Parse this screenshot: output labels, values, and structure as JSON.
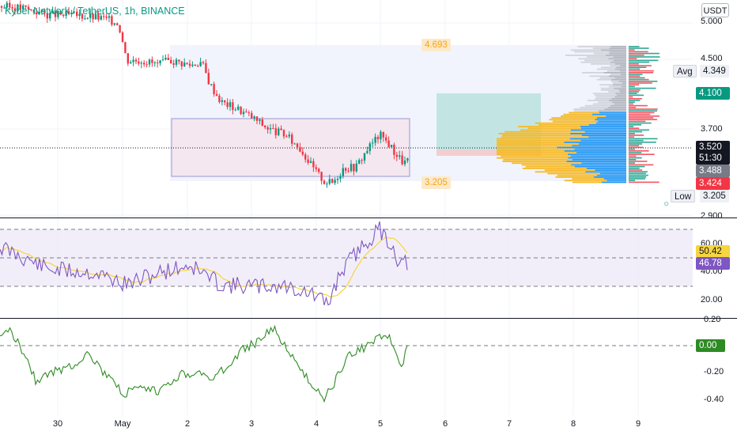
{
  "header": {
    "symbol_title": "Kyber Network / TetherUS, 1h, BINANCE",
    "currency": "USDT"
  },
  "price_axis": {
    "ticks": [
      "5.000",
      "4.500",
      "3.700",
      "2.900"
    ],
    "avg_label": "Avg",
    "avg_value": "4.349",
    "low_label": "Low",
    "low_value": "3.205",
    "level_green": "4.100",
    "last_price": "3.520",
    "countdown": "51:30",
    "level_gray": "3.488",
    "level_red": "3.424"
  },
  "range_labels": {
    "high": "4.693",
    "low": "3.205"
  },
  "rsi": {
    "ticks": [
      "60.00",
      "40.00",
      "20.00"
    ],
    "ma_value": "50.42",
    "rsi_value": "46.78"
  },
  "oscillator": {
    "ticks": [
      "0.20",
      "-0.20",
      "-0.40"
    ],
    "zero_value": "0.00"
  },
  "time_axis": [
    "30",
    "May",
    "2",
    "3",
    "4",
    "5",
    "6",
    "7",
    "8",
    "9"
  ],
  "colors": {
    "up": "#089981",
    "down": "#f23645",
    "rsi_line": "#7e57c2",
    "rsi_ma": "#f5d542",
    "osc_line": "#2e8b24",
    "green_tag": "#089981",
    "gray_tag": "#787b86",
    "red_tag": "#f23645",
    "vp_buy": "#2196f3",
    "vp_sell": "#f7b924"
  }
}
